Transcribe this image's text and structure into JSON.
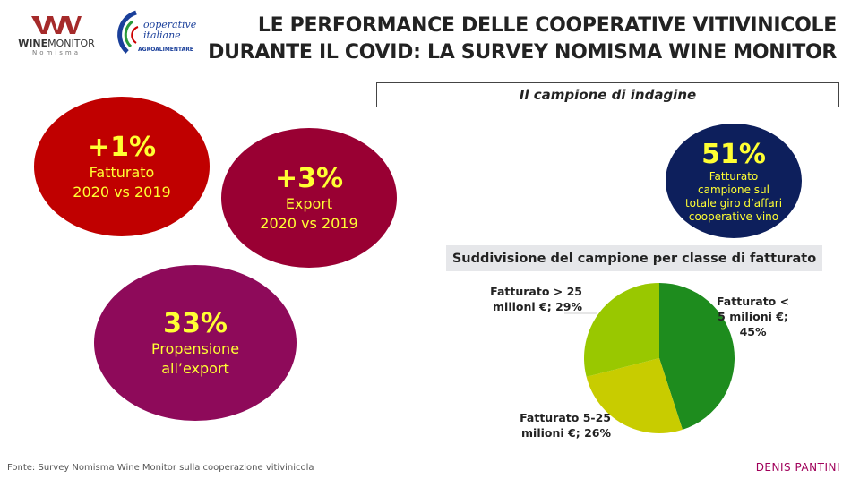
{
  "logos": {
    "winemonitor": "WINEMONITOR",
    "nomisma": "Nomisma",
    "alleanza": "alleanza delle Cooperative italiane AGROALIMENTARE"
  },
  "header": {
    "title_line1": "LE PERFORMANCE DELLE COOPERATIVE VITIVINICOLE",
    "title_line2": "DURANTE IL COVID: LA SURVEY NOMISMA WINE MONITOR"
  },
  "kpis": [
    {
      "value": "+1%",
      "line1": "Fatturato",
      "line2": "2020 vs 2019",
      "color": "#c00000"
    },
    {
      "value": "+3%",
      "line1": "Export",
      "line2": "2020 vs 2019",
      "color": "#990033"
    },
    {
      "value": "33%",
      "line1": "Propensione",
      "line2": "all’export",
      "color": "#8e0a5a"
    }
  ],
  "sample": {
    "box_title": "Il campione di indagine",
    "value": "51%",
    "lines": [
      "Fatturato",
      "campione sul",
      "totale giro d’affari",
      "cooperative vino"
    ],
    "color": "#0d1f5c"
  },
  "chart_data": {
    "type": "pie",
    "title": "Suddivisione del campione per classe di fatturato",
    "slices": [
      {
        "label_line1": "Fatturato <",
        "label_line2": "5 milioni €;",
        "label_line3": "45%",
        "value": 45,
        "color": "#1e8c1e"
      },
      {
        "label_line1": "Fatturato 5-25",
        "label_line2": "milioni €; 26%",
        "value": 26,
        "color": "#c8cc00"
      },
      {
        "label_line1": "Fatturato > 25",
        "label_line2": "milioni €; 29%",
        "value": 29,
        "color": "#99c800"
      }
    ]
  },
  "footer": {
    "source": "Fonte: Survey Nomisma Wine Monitor sulla cooperazione vitivinicola",
    "author": "DENIS PANTINI"
  }
}
